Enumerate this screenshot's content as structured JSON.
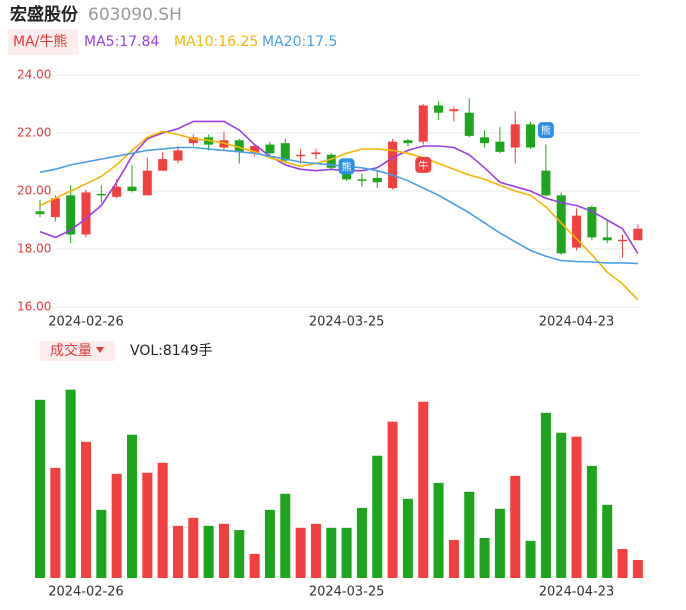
{
  "header": {
    "name": "宏盛股份",
    "code": "603090.SH",
    "ma_button": "MA/牛熊",
    "vol_button": "成交量"
  },
  "chart_data": [
    {
      "type": "candlestick",
      "categories": [
        null,
        null,
        null,
        "2024-02-26",
        null,
        null,
        null,
        null,
        null,
        null,
        null,
        null,
        null,
        null,
        null,
        null,
        null,
        null,
        null,
        null,
        "2024-03-25",
        null,
        null,
        null,
        null,
        null,
        null,
        null,
        null,
        null,
        null,
        null,
        null,
        null,
        null,
        "2024-04-23",
        null,
        null,
        null,
        null
      ],
      "open": [
        19.3,
        19.1,
        19.85,
        18.5,
        19.9,
        19.8,
        20.15,
        19.85,
        20.7,
        21.05,
        21.65,
        21.85,
        21.5,
        21.75,
        21.3,
        21.6,
        21.65,
        21.2,
        21.27,
        21.25,
        20.8,
        20.4,
        20.45,
        20.1,
        21.75,
        21.7,
        22.95,
        22.75,
        22.7,
        21.85,
        21.7,
        21.5,
        22.3,
        20.7,
        19.85,
        18.05,
        19.45,
        18.4,
        18.3,
        18.3
      ],
      "close": [
        19.2,
        19.75,
        18.5,
        19.95,
        19.85,
        20.15,
        20.0,
        20.7,
        21.1,
        21.4,
        21.85,
        21.6,
        21.75,
        21.35,
        21.55,
        21.3,
        21.05,
        21.25,
        21.33,
        20.8,
        20.4,
        20.35,
        20.3,
        21.7,
        21.65,
        22.95,
        22.7,
        22.82,
        21.9,
        21.65,
        21.35,
        22.3,
        21.5,
        19.85,
        17.85,
        19.15,
        18.4,
        18.3,
        18.32,
        18.7
      ],
      "high": [
        19.7,
        19.85,
        20.2,
        20.05,
        20.2,
        20.4,
        20.9,
        21.15,
        21.35,
        21.55,
        21.95,
        21.95,
        22.05,
        21.8,
        21.6,
        21.7,
        21.8,
        21.45,
        21.45,
        21.3,
        20.95,
        20.6,
        20.7,
        21.8,
        21.8,
        23.0,
        23.1,
        22.9,
        23.2,
        22.1,
        22.2,
        22.75,
        22.4,
        21.6,
        19.95,
        19.4,
        19.5,
        19.0,
        18.5,
        18.85
      ],
      "low": [
        19.1,
        18.95,
        18.2,
        18.4,
        19.6,
        19.75,
        19.95,
        19.85,
        20.7,
        20.95,
        21.55,
        21.4,
        21.4,
        20.95,
        21.2,
        21.15,
        20.95,
        20.95,
        21.1,
        20.75,
        20.35,
        20.15,
        20.1,
        20.05,
        21.55,
        21.6,
        22.45,
        22.4,
        21.85,
        21.5,
        21.3,
        20.95,
        21.45,
        19.8,
        17.8,
        17.95,
        18.3,
        18.2,
        17.7,
        18.3
      ],
      "up_color": "#f23f3f",
      "down_color": "#1ea51e",
      "series": [
        {
          "name": "MA5:17.84",
          "color": "#9b3fe6",
          "values": [
            18.6,
            18.4,
            18.65,
            19.05,
            19.5,
            20.3,
            21.2,
            21.8,
            22.0,
            22.15,
            22.4,
            22.4,
            22.4,
            22.1,
            21.6,
            21.2,
            20.9,
            20.75,
            20.7,
            20.75,
            20.7,
            20.7,
            20.8,
            21.15,
            21.4,
            21.55,
            21.55,
            21.5,
            21.25,
            20.8,
            20.3,
            20.15,
            20.0,
            19.75,
            19.6,
            19.5,
            19.3,
            19.0,
            18.7,
            17.84
          ]
        },
        {
          "name": "MA10:16.25",
          "color": "#f2b705",
          "values": [
            19.5,
            19.75,
            20.0,
            20.25,
            20.5,
            20.9,
            21.4,
            21.85,
            22.05,
            21.95,
            21.8,
            21.75,
            21.65,
            21.5,
            21.35,
            21.15,
            21.0,
            20.85,
            20.95,
            21.1,
            21.3,
            21.45,
            21.45,
            21.4,
            21.3,
            21.15,
            20.95,
            20.75,
            20.55,
            20.4,
            20.2,
            20.0,
            19.85,
            19.45,
            18.9,
            18.35,
            17.8,
            17.2,
            16.8,
            16.25
          ]
        },
        {
          "name": "MA20:17.5",
          "color": "#4a9ee8",
          "values": [
            20.65,
            20.75,
            20.9,
            21.0,
            21.1,
            21.2,
            21.3,
            21.4,
            21.45,
            21.5,
            21.5,
            21.45,
            21.4,
            21.35,
            21.3,
            21.2,
            21.1,
            21.0,
            20.95,
            20.9,
            20.85,
            20.8,
            20.7,
            20.55,
            20.35,
            20.1,
            19.85,
            19.55,
            19.25,
            18.9,
            18.55,
            18.25,
            17.95,
            17.75,
            17.6,
            17.57,
            17.55,
            17.52,
            17.52,
            17.5
          ]
        }
      ],
      "ylim": [
        16,
        24
      ],
      "yticks": [
        {
          "value": 24,
          "label": "24.00"
        },
        {
          "value": 22,
          "label": "22.00"
        },
        {
          "value": 20,
          "label": "20.00"
        },
        {
          "value": 18,
          "label": "18.00"
        },
        {
          "value": 16,
          "label": "16.00"
        }
      ],
      "grid": true,
      "annotations": [
        {
          "at": 20,
          "value": 20.85,
          "text": "熊",
          "color": "#2f8fe6"
        },
        {
          "at": 25,
          "value": 20.9,
          "text": "牛",
          "color": "#f23f3f"
        },
        {
          "at": 33,
          "value": 22.1,
          "text": "熊",
          "color": "#2f8fe6"
        }
      ]
    },
    {
      "type": "bar",
      "title": "VOL:8149手",
      "categories": [
        null,
        null,
        null,
        "2024-02-26",
        null,
        null,
        null,
        null,
        null,
        null,
        null,
        null,
        null,
        null,
        null,
        null,
        null,
        null,
        null,
        null,
        "2024-03-25",
        null,
        null,
        null,
        null,
        null,
        null,
        null,
        null,
        null,
        null,
        null,
        null,
        null,
        null,
        "2024-04-23",
        null,
        null,
        null,
        null
      ],
      "values": [
        80600,
        49800,
        85200,
        61600,
        30800,
        47100,
        64800,
        47600,
        52100,
        23600,
        27200,
        23600,
        24500,
        21700,
        10900,
        30800,
        38100,
        22700,
        24500,
        22700,
        22700,
        31700,
        55300,
        70700,
        35800,
        79700,
        43000,
        17200,
        39000,
        18100,
        31300,
        46200,
        16800,
        74700,
        65700,
        63900,
        50700,
        33100,
        13100,
        8149
      ],
      "colors": [
        "#1ea51e",
        "#f23f3f",
        "#1ea51e",
        "#f23f3f",
        "#1ea51e",
        "#f23f3f",
        "#1ea51e",
        "#f23f3f",
        "#f23f3f",
        "#f23f3f",
        "#f23f3f",
        "#1ea51e",
        "#f23f3f",
        "#1ea51e",
        "#f23f3f",
        "#1ea51e",
        "#1ea51e",
        "#f23f3f",
        "#f23f3f",
        "#1ea51e",
        "#1ea51e",
        "#1ea51e",
        "#1ea51e",
        "#f23f3f",
        "#1ea51e",
        "#f23f3f",
        "#1ea51e",
        "#f23f3f",
        "#1ea51e",
        "#1ea51e",
        "#1ea51e",
        "#f23f3f",
        "#1ea51e",
        "#1ea51e",
        "#1ea51e",
        "#f23f3f",
        "#1ea51e",
        "#1ea51e",
        "#f23f3f",
        "#f23f3f"
      ],
      "ylim": [
        0,
        90000
      ]
    }
  ]
}
